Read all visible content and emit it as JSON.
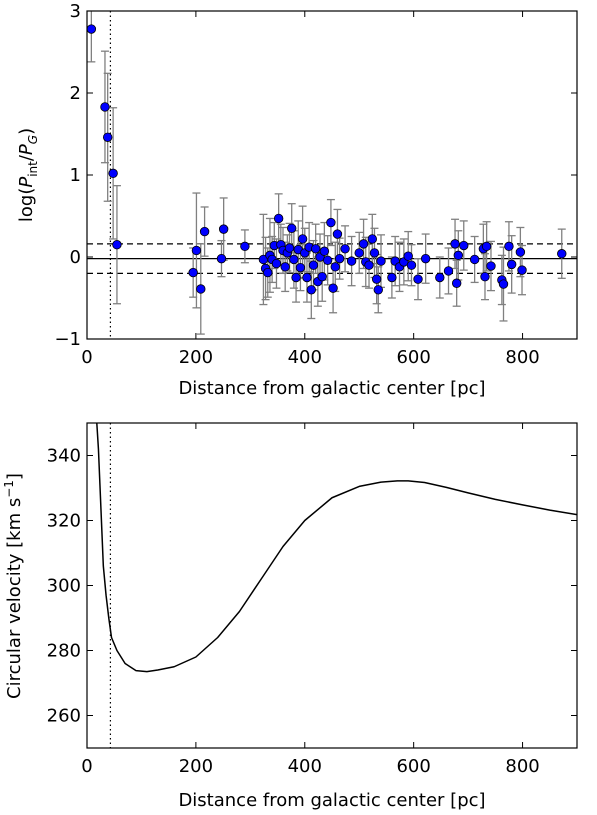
{
  "chart_data": [
    {
      "type": "scatter",
      "title": "",
      "xlabel": "Distance from galactic center [pc]",
      "ylabel_parts": [
        "log(",
        "P",
        "int",
        "/",
        "P",
        "G",
        ")"
      ],
      "xlim": [
        0,
        900
      ],
      "ylim": [
        -1,
        3
      ],
      "x_ticks": [
        0,
        200,
        400,
        600,
        800
      ],
      "y_ticks": [
        -1,
        0,
        1,
        2,
        3
      ],
      "x_tick_labels": [
        "0",
        "200",
        "400",
        "600",
        "800"
      ],
      "y_tick_labels": [
        "−1",
        "0",
        "1",
        "2",
        "3"
      ],
      "marker_color": "#0000ff",
      "errorbar_color": "#808080",
      "reference_lines": {
        "solid_y": -0.02,
        "dashed_y": [
          0.16,
          -0.2
        ],
        "dotted_x": 43
      },
      "points": [
        {
          "x": 8,
          "y": 2.78,
          "err": 0.4
        },
        {
          "x": 33,
          "y": 1.83,
          "err": 0.68
        },
        {
          "x": 38,
          "y": 1.46,
          "err": 0.78
        },
        {
          "x": 48,
          "y": 1.02,
          "err": 0.8
        },
        {
          "x": 55,
          "y": 0.15,
          "err": 0.72
        },
        {
          "x": 195,
          "y": -0.19,
          "err": 0.3
        },
        {
          "x": 201,
          "y": 0.08,
          "err": 0.7
        },
        {
          "x": 209,
          "y": -0.39,
          "err": 0.55
        },
        {
          "x": 216,
          "y": 0.31,
          "err": 0.3
        },
        {
          "x": 247,
          "y": -0.02,
          "err": 0.22
        },
        {
          "x": 251,
          "y": 0.34,
          "err": 0.38
        },
        {
          "x": 290,
          "y": 0.13,
          "err": 0.2
        },
        {
          "x": 324,
          "y": -0.03,
          "err": 0.55
        },
        {
          "x": 328,
          "y": -0.14,
          "err": 0.38
        },
        {
          "x": 332,
          "y": -0.19,
          "err": 0.3
        },
        {
          "x": 336,
          "y": 0.02,
          "err": 0.45
        },
        {
          "x": 340,
          "y": -0.03,
          "err": 0.28
        },
        {
          "x": 344,
          "y": 0.14,
          "err": 0.28
        },
        {
          "x": 348,
          "y": -0.08,
          "err": 0.3
        },
        {
          "x": 352,
          "y": 0.47,
          "err": 0.3
        },
        {
          "x": 356,
          "y": 0.15,
          "err": 0.25
        },
        {
          "x": 360,
          "y": 0.08,
          "err": 0.28
        },
        {
          "x": 364,
          "y": -0.12,
          "err": 0.3
        },
        {
          "x": 368,
          "y": 0.05,
          "err": 0.22
        },
        {
          "x": 372,
          "y": 0.11,
          "err": 0.3
        },
        {
          "x": 376,
          "y": 0.35,
          "err": 0.3
        },
        {
          "x": 380,
          "y": -0.03,
          "err": 0.35
        },
        {
          "x": 384,
          "y": -0.25,
          "err": 0.3
        },
        {
          "x": 388,
          "y": 0.09,
          "err": 0.35
        },
        {
          "x": 392,
          "y": -0.13,
          "err": 0.28
        },
        {
          "x": 396,
          "y": 0.22,
          "err": 0.4
        },
        {
          "x": 400,
          "y": 0.05,
          "err": 0.3
        },
        {
          "x": 404,
          "y": -0.25,
          "err": 0.3
        },
        {
          "x": 408,
          "y": 0.12,
          "err": 0.3
        },
        {
          "x": 412,
          "y": -0.4,
          "err": 0.35
        },
        {
          "x": 416,
          "y": -0.1,
          "err": 0.3
        },
        {
          "x": 420,
          "y": 0.1,
          "err": 0.3
        },
        {
          "x": 424,
          "y": -0.3,
          "err": 0.3
        },
        {
          "x": 428,
          "y": 0.0,
          "err": 0.28
        },
        {
          "x": 432,
          "y": -0.24,
          "err": 0.3
        },
        {
          "x": 436,
          "y": 0.07,
          "err": 0.35
        },
        {
          "x": 442,
          "y": -0.04,
          "err": 0.3
        },
        {
          "x": 448,
          "y": 0.42,
          "err": 0.28
        },
        {
          "x": 452,
          "y": -0.38,
          "err": 0.3
        },
        {
          "x": 456,
          "y": -0.12,
          "err": 0.3
        },
        {
          "x": 460,
          "y": 0.28,
          "err": 0.3
        },
        {
          "x": 464,
          "y": -0.02,
          "err": 0.25
        },
        {
          "x": 474,
          "y": 0.1,
          "err": 0.28
        },
        {
          "x": 486,
          "y": -0.05,
          "err": 0.3
        },
        {
          "x": 500,
          "y": 0.05,
          "err": 0.25
        },
        {
          "x": 508,
          "y": 0.16,
          "err": 0.3
        },
        {
          "x": 512,
          "y": -0.06,
          "err": 0.3
        },
        {
          "x": 518,
          "y": -0.1,
          "err": 0.28
        },
        {
          "x": 524,
          "y": 0.22,
          "err": 0.3
        },
        {
          "x": 528,
          "y": 0.05,
          "err": 0.3
        },
        {
          "x": 532,
          "y": -0.27,
          "err": 0.3
        },
        {
          "x": 535,
          "y": -0.4,
          "err": 0.28
        },
        {
          "x": 540,
          "y": -0.05,
          "err": 0.32
        },
        {
          "x": 560,
          "y": -0.25,
          "err": 0.25
        },
        {
          "x": 566,
          "y": -0.05,
          "err": 0.3
        },
        {
          "x": 574,
          "y": -0.12,
          "err": 0.3
        },
        {
          "x": 582,
          "y": -0.06,
          "err": 0.28
        },
        {
          "x": 590,
          "y": 0.01,
          "err": 0.3
        },
        {
          "x": 596,
          "y": -0.1,
          "err": 0.25
        },
        {
          "x": 608,
          "y": -0.27,
          "err": 0.25
        },
        {
          "x": 622,
          "y": -0.02,
          "err": 0.3
        },
        {
          "x": 648,
          "y": -0.25,
          "err": 0.25
        },
        {
          "x": 664,
          "y": -0.17,
          "err": 0.28
        },
        {
          "x": 676,
          "y": 0.16,
          "err": 0.3
        },
        {
          "x": 679,
          "y": -0.32,
          "err": 0.28
        },
        {
          "x": 682,
          "y": 0.02,
          "err": 0.3
        },
        {
          "x": 692,
          "y": 0.14,
          "err": 0.3
        },
        {
          "x": 712,
          "y": -0.03,
          "err": 0.28
        },
        {
          "x": 728,
          "y": 0.1,
          "err": 0.3
        },
        {
          "x": 731,
          "y": -0.24,
          "err": 0.28
        },
        {
          "x": 734,
          "y": 0.13,
          "err": 0.3
        },
        {
          "x": 742,
          "y": -0.11,
          "err": 0.3
        },
        {
          "x": 762,
          "y": -0.28,
          "err": 0.3
        },
        {
          "x": 765,
          "y": -0.33,
          "err": 0.45
        },
        {
          "x": 775,
          "y": 0.13,
          "err": 0.3
        },
        {
          "x": 780,
          "y": -0.09,
          "err": 0.35
        },
        {
          "x": 796,
          "y": 0.06,
          "err": 0.3
        },
        {
          "x": 799,
          "y": -0.16,
          "err": 0.3
        },
        {
          "x": 872,
          "y": 0.04,
          "err": 0.3
        }
      ]
    },
    {
      "type": "line",
      "title": "",
      "xlabel": "Distance from galactic center [pc]",
      "ylabel_parts": [
        "Circular velocity [km s",
        "−1",
        "]"
      ],
      "xlim": [
        0,
        900
      ],
      "ylim": [
        250,
        350
      ],
      "x_ticks": [
        0,
        200,
        400,
        600,
        800
      ],
      "y_ticks": [
        260,
        280,
        300,
        320,
        340
      ],
      "x_tick_labels": [
        "0",
        "200",
        "400",
        "600",
        "800"
      ],
      "y_tick_labels": [
        "260",
        "280",
        "300",
        "320",
        "340"
      ],
      "line_color": "#000000",
      "reference_lines": {
        "dotted_x": 43
      },
      "x": [
        18,
        21,
        24,
        27,
        30,
        35,
        40,
        45,
        55,
        70,
        90,
        110,
        130,
        160,
        200,
        240,
        280,
        320,
        360,
        400,
        450,
        500,
        540,
        570,
        590,
        620,
        660,
        700,
        750,
        800,
        850,
        900
      ],
      "y": [
        350,
        342,
        330,
        318,
        306,
        297,
        290,
        284,
        280,
        276,
        273.8,
        273.5,
        274,
        275,
        278,
        284,
        292,
        302,
        312,
        320,
        327,
        330.5,
        331.8,
        332.2,
        332.2,
        331.7,
        330.2,
        328.5,
        326.5,
        324.8,
        323.2,
        321.8
      ]
    }
  ]
}
